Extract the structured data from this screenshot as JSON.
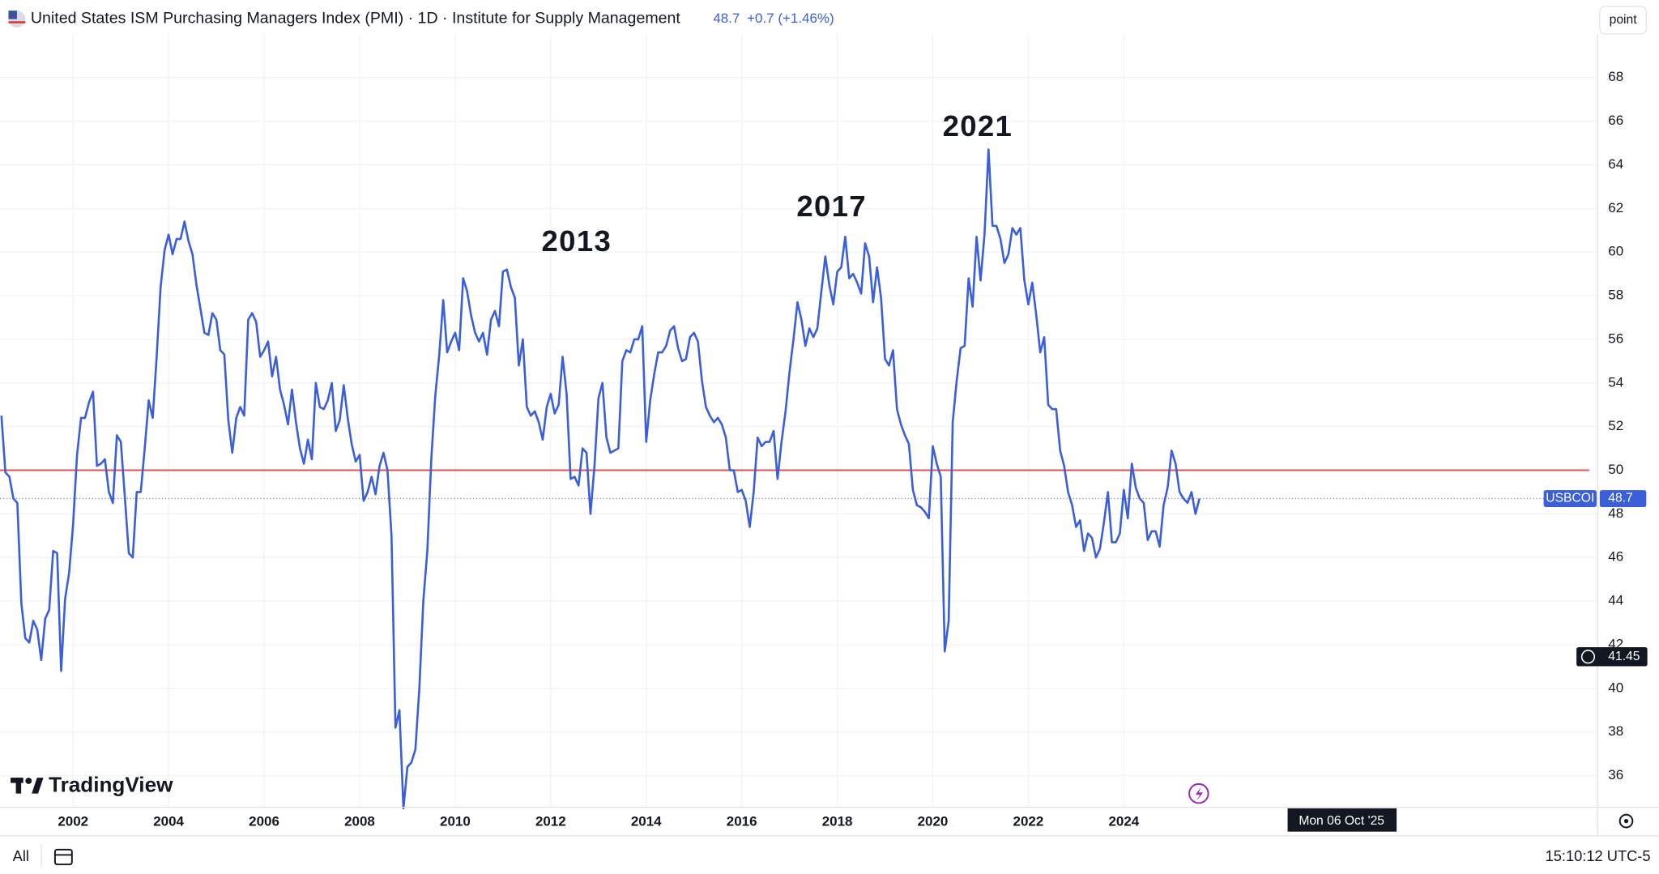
{
  "chart_data": {
    "type": "line",
    "title": "United States ISM Purchasing Managers Index (PMI) · 1D · Institute for Supply Management",
    "last_value": 48.7,
    "change": "+0.7 (+1.46%)",
    "symbol": "USBCOI",
    "scale_button": "point",
    "brand": "TradingView",
    "range_button": "All",
    "clock": "15:10:12 UTC-5",
    "annotations": [
      "2013",
      "2017",
      "2021"
    ],
    "reference_line": {
      "value": 50,
      "color": "#e05252"
    },
    "crosshair": {
      "value": 41.45,
      "date_label": "Mon 06 Oct '25"
    },
    "xlim": [
      2000.47,
      2033.92
    ],
    "ylim": [
      34.55,
      70
    ],
    "xticks": [
      2002,
      2004,
      2006,
      2008,
      2010,
      2012,
      2014,
      2016,
      2018,
      2020,
      2022,
      2024
    ],
    "yticks": [
      36,
      38,
      40,
      42,
      44,
      46,
      48,
      50,
      52,
      54,
      56,
      58,
      60,
      62,
      64,
      66,
      68
    ],
    "grid": true,
    "series": [
      {
        "name": "USBCOI",
        "color": "#3b5fd9",
        "x": [
          2000.5,
          2000.583,
          2000.667,
          2000.75,
          2000.833,
          2000.917,
          2001,
          2001.083,
          2001.167,
          2001.25,
          2001.333,
          2001.417,
          2001.5,
          2001.583,
          2001.667,
          2001.75,
          2001.833,
          2001.917,
          2002,
          2002.083,
          2002.167,
          2002.25,
          2002.333,
          2002.417,
          2002.5,
          2002.583,
          2002.667,
          2002.75,
          2002.833,
          2002.917,
          2003,
          2003.083,
          2003.167,
          2003.25,
          2003.333,
          2003.417,
          2003.5,
          2003.583,
          2003.667,
          2003.75,
          2003.833,
          2003.917,
          2004,
          2004.083,
          2004.167,
          2004.25,
          2004.333,
          2004.417,
          2004.5,
          2004.583,
          2004.667,
          2004.75,
          2004.833,
          2004.917,
          2005,
          2005.083,
          2005.167,
          2005.25,
          2005.333,
          2005.417,
          2005.5,
          2005.583,
          2005.667,
          2005.75,
          2005.833,
          2005.917,
          2006,
          2006.083,
          2006.167,
          2006.25,
          2006.333,
          2006.417,
          2006.5,
          2006.583,
          2006.667,
          2006.75,
          2006.833,
          2006.917,
          2007,
          2007.083,
          2007.167,
          2007.25,
          2007.333,
          2007.417,
          2007.5,
          2007.583,
          2007.667,
          2007.75,
          2007.833,
          2007.917,
          2008,
          2008.083,
          2008.167,
          2008.25,
          2008.333,
          2008.417,
          2008.5,
          2008.583,
          2008.667,
          2008.75,
          2008.833,
          2008.917,
          2009,
          2009.083,
          2009.167,
          2009.25,
          2009.333,
          2009.417,
          2009.5,
          2009.583,
          2009.667,
          2009.75,
          2009.833,
          2009.917,
          2010,
          2010.083,
          2010.167,
          2010.25,
          2010.333,
          2010.417,
          2010.5,
          2010.583,
          2010.667,
          2010.75,
          2010.833,
          2010.917,
          2011,
          2011.083,
          2011.167,
          2011.25,
          2011.333,
          2011.417,
          2011.5,
          2011.583,
          2011.667,
          2011.75,
          2011.833,
          2011.917,
          2012,
          2012.083,
          2012.167,
          2012.25,
          2012.333,
          2012.417,
          2012.5,
          2012.583,
          2012.667,
          2012.75,
          2012.833,
          2012.917,
          2013,
          2013.083,
          2013.167,
          2013.25,
          2013.333,
          2013.417,
          2013.5,
          2013.583,
          2013.667,
          2013.75,
          2013.833,
          2013.917,
          2014,
          2014.083,
          2014.167,
          2014.25,
          2014.333,
          2014.417,
          2014.5,
          2014.583,
          2014.667,
          2014.75,
          2014.833,
          2014.917,
          2015,
          2015.083,
          2015.167,
          2015.25,
          2015.333,
          2015.417,
          2015.5,
          2015.583,
          2015.667,
          2015.75,
          2015.833,
          2015.917,
          2016,
          2016.083,
          2016.167,
          2016.25,
          2016.333,
          2016.417,
          2016.5,
          2016.583,
          2016.667,
          2016.75,
          2016.833,
          2016.917,
          2017,
          2017.083,
          2017.167,
          2017.25,
          2017.333,
          2017.417,
          2017.5,
          2017.583,
          2017.667,
          2017.75,
          2017.833,
          2017.917,
          2018,
          2018.083,
          2018.167,
          2018.25,
          2018.333,
          2018.417,
          2018.5,
          2018.583,
          2018.667,
          2018.75,
          2018.833,
          2018.917,
          2019,
          2019.083,
          2019.167,
          2019.25,
          2019.333,
          2019.417,
          2019.5,
          2019.583,
          2019.667,
          2019.75,
          2019.833,
          2019.917,
          2020,
          2020.083,
          2020.167,
          2020.25,
          2020.333,
          2020.417,
          2020.5,
          2020.583,
          2020.667,
          2020.75,
          2020.833,
          2020.917,
          2021,
          2021.083,
          2021.167,
          2021.25,
          2021.333,
          2021.417,
          2021.5,
          2021.583,
          2021.667,
          2021.75,
          2021.833,
          2021.917,
          2022,
          2022.083,
          2022.167,
          2022.25,
          2022.333,
          2022.417,
          2022.5,
          2022.583,
          2022.667,
          2022.75,
          2022.833,
          2022.917,
          2023,
          2023.083,
          2023.167,
          2023.25,
          2023.333,
          2023.417,
          2023.5,
          2023.583,
          2023.667,
          2023.75,
          2023.833,
          2023.917,
          2024,
          2024.083,
          2024.167,
          2024.25,
          2024.333,
          2024.417,
          2024.5,
          2024.583,
          2024.667,
          2024.75,
          2024.833,
          2024.917,
          2025,
          2025.083,
          2025.167,
          2025.25,
          2025.333,
          2025.417,
          2025.5,
          2025.583
        ],
        "values": [
          52.5,
          49.9,
          49.7,
          48.7,
          48.5,
          43.9,
          42.3,
          42.1,
          43.1,
          42.7,
          41.3,
          43.2,
          43.6,
          46.3,
          46.2,
          40.8,
          44.1,
          45.3,
          47.5,
          50.7,
          52.4,
          52.4,
          53.1,
          53.6,
          50.2,
          50.3,
          50.5,
          49.0,
          48.5,
          51.6,
          51.3,
          48.8,
          46.2,
          46.0,
          49.0,
          49.0,
          51.0,
          53.2,
          52.4,
          55.2,
          58.4,
          60.1,
          60.8,
          59.9,
          60.6,
          60.6,
          61.4,
          60.5,
          59.9,
          58.5,
          57.4,
          56.3,
          56.2,
          57.2,
          56.9,
          55.5,
          55.3,
          52.3,
          50.8,
          52.4,
          52.9,
          52.5,
          56.9,
          57.2,
          56.8,
          55.2,
          55.5,
          55.9,
          54.3,
          55.2,
          53.7,
          53.0,
          52.1,
          53.7,
          52.2,
          51.0,
          50.3,
          51.4,
          50.5,
          54.0,
          52.9,
          52.8,
          53.2,
          54.0,
          51.8,
          52.3,
          53.9,
          52.4,
          51.2,
          50.4,
          50.7,
          48.6,
          49.0,
          49.7,
          48.9,
          50.2,
          50.8,
          50.0,
          47.0,
          38.2,
          39.0,
          34.5,
          36.4,
          36.6,
          37.2,
          40.0,
          44.0,
          46.3,
          50.5,
          53.4,
          55.3,
          57.8,
          55.4,
          55.9,
          56.3,
          55.5,
          58.8,
          58.2,
          57.1,
          56.3,
          55.9,
          56.3,
          55.3,
          56.9,
          57.3,
          56.6,
          59.1,
          59.2,
          58.4,
          57.9,
          54.8,
          56.0,
          52.9,
          52.5,
          52.7,
          52.2,
          51.4,
          52.9,
          53.5,
          52.6,
          53.0,
          55.2,
          53.5,
          49.6,
          49.7,
          49.3,
          51.0,
          50.8,
          48.0,
          50.2,
          53.3,
          54.0,
          51.5,
          50.8,
          50.9,
          51.0,
          55.0,
          55.5,
          55.4,
          56.0,
          56.0,
          56.6,
          51.3,
          53.2,
          54.4,
          55.4,
          55.4,
          55.7,
          56.4,
          56.6,
          55.6,
          55.0,
          55.1,
          56.1,
          56.3,
          55.9,
          54.1,
          52.9,
          52.5,
          52.2,
          52.4,
          52.1,
          51.5,
          50.0,
          50.0,
          49.0,
          49.1,
          48.6,
          47.4,
          49.0,
          51.5,
          51.1,
          51.3,
          51.3,
          51.8,
          49.6,
          51.3,
          52.7,
          54.5,
          56.0,
          57.7,
          56.9,
          55.7,
          56.5,
          56.1,
          56.5,
          58.2,
          59.8,
          58.5,
          57.6,
          59.1,
          59.3,
          60.7,
          58.8,
          59.0,
          58.6,
          58.1,
          60.4,
          59.8,
          57.7,
          59.3,
          57.9,
          55.1,
          54.8,
          55.5,
          52.8,
          52.1,
          51.6,
          51.2,
          49.1,
          48.4,
          48.3,
          48.1,
          47.8,
          51.1,
          50.3,
          49.7,
          41.7,
          43.1,
          52.2,
          54.1,
          55.6,
          55.7,
          58.8,
          57.5,
          60.7,
          58.7,
          60.8,
          64.7,
          61.2,
          61.2,
          60.6,
          59.5,
          59.9,
          61.1,
          60.8,
          61.1,
          58.7,
          57.6,
          58.6,
          57.1,
          55.4,
          56.1,
          53.0,
          52.8,
          52.8,
          50.9,
          50.2,
          49.0,
          48.4,
          47.4,
          47.7,
          46.3,
          47.1,
          46.9,
          46.0,
          46.4,
          47.6,
          49.0,
          46.7,
          46.7,
          47.1,
          49.1,
          47.8,
          50.3,
          49.2,
          48.7,
          48.5,
          46.8,
          47.2,
          47.2,
          46.5,
          48.4,
          49.2,
          50.9,
          50.3,
          49.0,
          48.7,
          48.5,
          49.0,
          48.0,
          48.7
        ]
      }
    ]
  }
}
